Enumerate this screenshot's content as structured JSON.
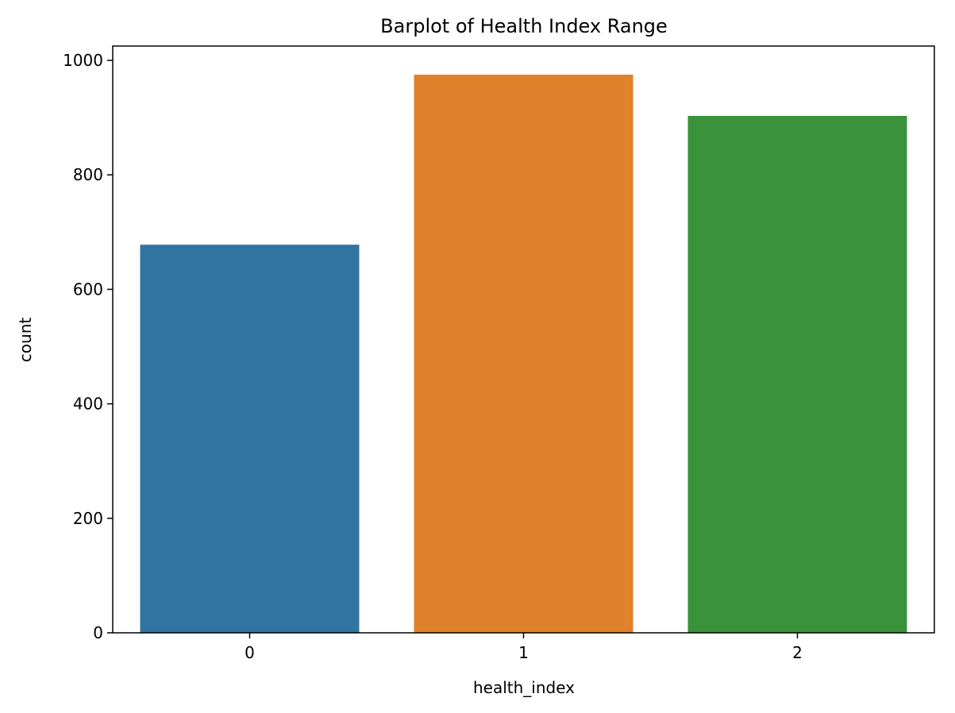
{
  "chart_data": {
    "type": "bar",
    "title": "Barplot of Health Index Range",
    "xlabel": "health_index",
    "ylabel": "count",
    "categories": [
      "0",
      "1",
      "2"
    ],
    "values": [
      678,
      975,
      903
    ],
    "colors": [
      "#3274a1",
      "#e1812c",
      "#3a923a"
    ],
    "ylim": [
      0,
      1025
    ],
    "yticks": [
      0,
      200,
      400,
      600,
      800,
      1000
    ],
    "grid": false,
    "legend": "none"
  }
}
